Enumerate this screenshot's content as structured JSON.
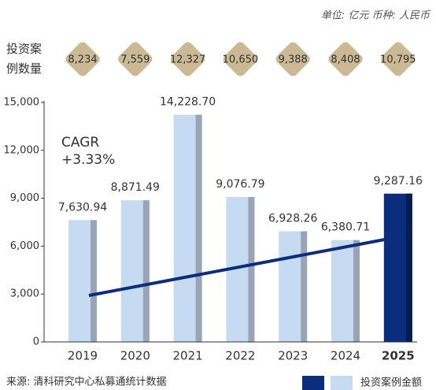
{
  "chart_data": {
    "type": "bar",
    "unit_note": "单位: 亿元   币种: 人民币",
    "annotation": "CAGR",
    "annotation_value": "+3.33%",
    "source": "来源: 清科研究中心私募通统计数据",
    "categories": [
      "2019",
      "2020",
      "2021",
      "2022",
      "2023",
      "2024",
      "2025"
    ],
    "series": [
      {
        "name": "投资案例金额",
        "values": [
          7630.94,
          8871.49,
          14228.7,
          9076.79,
          6928.26,
          6380.71,
          9287.16
        ],
        "value_labels": [
          "7,630.94",
          "8,871.49",
          "14,228.70",
          "9,076.79",
          "6,928.26",
          "6,380.71",
          "9,287.16"
        ],
        "colors": [
          "#c6daf1",
          "#c6daf1",
          "#c6daf1",
          "#c6daf1",
          "#c6daf1",
          "#c6daf1",
          "#0b2d7c"
        ]
      }
    ],
    "counts": {
      "name": "投资案例数量",
      "values": [
        8234,
        7559,
        12327,
        10650,
        9388,
        8408,
        10795
      ],
      "value_labels": [
        "8,234",
        "7,559",
        "12,327",
        "10,650",
        "9,388",
        "8,408",
        "10,795"
      ],
      "color": "#cbb894"
    },
    "ylim": [
      0,
      15000
    ],
    "yticks": [
      0,
      {
        "value": 3000,
        "label": "3,000"
      },
      {
        "value": 6000,
        "label": "6,000"
      },
      {
        "value": 9000,
        "label": "9,000"
      },
      {
        "value": 12000,
        "label": "12,000"
      },
      {
        "value": 15000,
        "label": "15,000"
      }
    ]
  }
}
